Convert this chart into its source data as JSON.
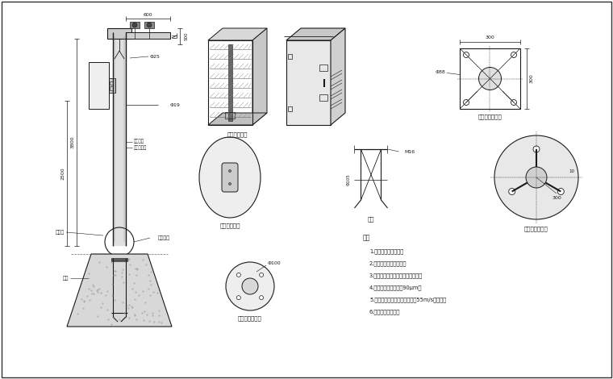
{
  "bg_color": "#ffffff",
  "line_color": "#1a1a1a",
  "notes_header": "说明",
  "notes": [
    "1.主干为国标镀锌管。",
    "2.上下法兰加强筋连接。",
    "3.喷涂后不再进行任何加工和焊接。",
    "4.钢管镀锌锌层厚护为90μm。",
    "5.立杆、横臂和其它零件应能抗55m/s的风速。",
    "6.接管、避雷针可折"
  ],
  "labels": {
    "fangshui": "防水箱放大图",
    "weixiu_title": "检修孔放大图",
    "jiji": "桁机法兰放大图",
    "dizuo_zheng": "底座法兰正视图",
    "dizuo_fang": "底座法兰放大图",
    "dijiao": "地笼",
    "weixiu_label": "检修孔",
    "dijiao_label": "地笼",
    "dizuo_lan_label": "底座法兰",
    "shang_bai": "上层白色",
    "xia_hui": "下层灰绿色",
    "d_19": "Φ19",
    "d_25": "Φ25",
    "d_88": "Φ88",
    "d_100": "Φ100",
    "d_105": "Φ105",
    "M16": "M16",
    "dim_500": "500",
    "dim_600": "600",
    "dim_3800": "3800",
    "dim_2500": "2500",
    "dim_100": "10",
    "dim_300a": "300",
    "dim_300b": "300",
    "dim_300c": "300"
  }
}
